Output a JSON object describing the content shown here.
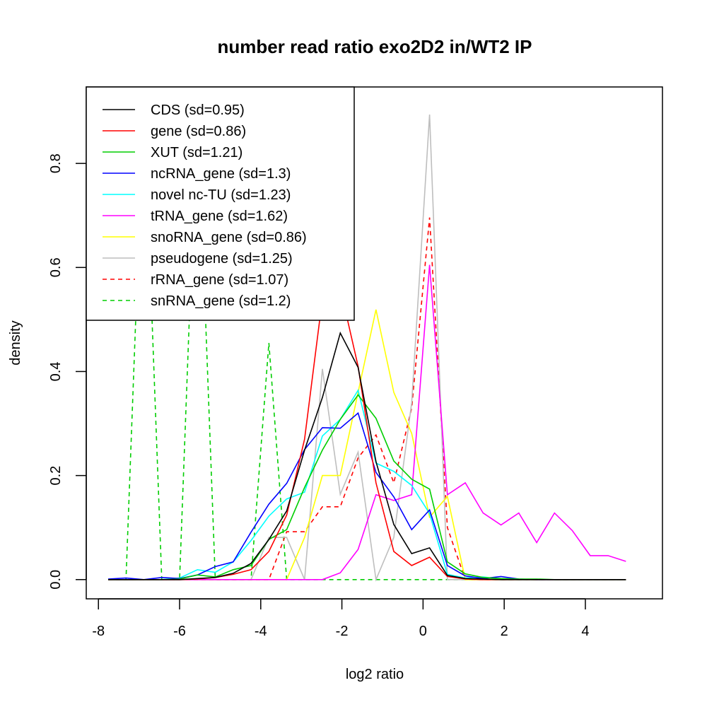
{
  "chart_data": {
    "type": "line",
    "title": "number read ratio exo2D2 in/WT2 IP",
    "xlabel": "log2 ratio",
    "ylabel": "density",
    "xlim": [
      -8.3,
      5.9
    ],
    "ylim": [
      -0.037,
      0.947
    ],
    "xticks": [
      -8,
      -6,
      -4,
      -2,
      0,
      2,
      4
    ],
    "xtick_labels": [
      "-8",
      "-6",
      "-4",
      "-2",
      "0",
      "2",
      "4"
    ],
    "yticks": [
      0.0,
      0.2,
      0.4,
      0.6,
      0.8
    ],
    "ytick_labels": [
      "0.0",
      "0.2",
      "0.4",
      "0.6",
      "0.8"
    ],
    "grid": false,
    "legend_position": "top-left",
    "x": [
      -7.76,
      -7.32,
      -6.88,
      -6.44,
      -6.0,
      -5.56,
      -5.12,
      -4.68,
      -4.24,
      -3.8,
      -3.36,
      -2.92,
      -2.48,
      -2.04,
      -1.6,
      -1.16,
      -0.72,
      -0.28,
      0.16,
      0.6,
      1.04,
      1.48,
      1.92,
      2.36,
      2.8,
      3.24,
      3.68,
      4.12,
      4.56,
      5.0
    ],
    "series": [
      {
        "name": "CDS",
        "legend": "CDS (sd=0.95)",
        "color": "#000000",
        "dash": false,
        "values": [
          0.0,
          0.0,
          0.0,
          0.0,
          0.0,
          0.002,
          0.004,
          0.012,
          0.031,
          0.077,
          0.132,
          0.249,
          0.35,
          0.474,
          0.408,
          0.227,
          0.106,
          0.05,
          0.061,
          0.008,
          0.002,
          0.001,
          0.0,
          0.0,
          0.0,
          0.0,
          0.0,
          0.0,
          0.0,
          0.0
        ]
      },
      {
        "name": "gene",
        "legend": "gene (sd=0.86)",
        "color": "#ff0000",
        "dash": false,
        "values": [
          0.0,
          0.0,
          0.0,
          0.0,
          0.0,
          0.001,
          0.004,
          0.01,
          0.019,
          0.054,
          0.124,
          0.27,
          0.54,
          0.56,
          0.41,
          0.186,
          0.054,
          0.027,
          0.043,
          0.006,
          0.001,
          0.0,
          0.0,
          0.0,
          0.0,
          0.0,
          0.0,
          0.0,
          0.0,
          0.0
        ]
      },
      {
        "name": "XUT",
        "legend": "XUT (sd=1.21)",
        "color": "#00cd00",
        "dash": false,
        "values": [
          0.0,
          0.0,
          0.0,
          0.0,
          0.001,
          0.009,
          0.005,
          0.019,
          0.027,
          0.077,
          0.096,
          0.177,
          0.249,
          0.308,
          0.355,
          0.31,
          0.228,
          0.193,
          0.174,
          0.034,
          0.011,
          0.004,
          0.002,
          0.001,
          0.001,
          0.0,
          0.0,
          0.0,
          0.0,
          0.0
        ]
      },
      {
        "name": "ncRNA_gene",
        "legend": "ncRNA_gene (sd=1.3)",
        "color": "#0000ff",
        "dash": false,
        "values": [
          0.001,
          0.003,
          0.0,
          0.004,
          0.002,
          0.009,
          0.025,
          0.034,
          0.091,
          0.145,
          0.185,
          0.25,
          0.292,
          0.291,
          0.32,
          0.206,
          0.159,
          0.096,
          0.134,
          0.027,
          0.007,
          0.002,
          0.006,
          0.001,
          0.0,
          0.0,
          0.0,
          0.0,
          0.0,
          0.0
        ]
      },
      {
        "name": "novel nc-TU",
        "legend": "novel nc-TU (sd=1.23)",
        "color": "#00ffff",
        "dash": false,
        "values": [
          0.0,
          0.0,
          0.0,
          0.0,
          0.003,
          0.019,
          0.014,
          0.034,
          0.075,
          0.122,
          0.155,
          0.168,
          0.276,
          0.308,
          0.364,
          0.224,
          0.208,
          0.181,
          0.127,
          0.01,
          0.003,
          0.005,
          0.001,
          0.0,
          0.0,
          0.0,
          0.0,
          0.0,
          0.0,
          0.0
        ]
      },
      {
        "name": "tRNA_gene",
        "legend": "tRNA_gene (sd=1.62)",
        "color": "#ff00ff",
        "dash": false,
        "values": [
          0.0,
          0.0,
          0.0,
          0.0,
          0.0,
          0.0,
          0.0,
          0.0,
          0.0,
          0.0,
          0.0,
          0.0,
          0.0,
          0.013,
          0.058,
          0.163,
          0.152,
          0.163,
          0.605,
          0.163,
          0.186,
          0.128,
          0.105,
          0.128,
          0.071,
          0.128,
          0.094,
          0.046,
          0.046,
          0.035
        ]
      },
      {
        "name": "snoRNA_gene",
        "legend": "snoRNA_gene (sd=0.86)",
        "color": "#ffff00",
        "dash": false,
        "values": [
          0.0,
          0.0,
          0.0,
          0.0,
          0.0,
          0.0,
          0.0,
          0.0,
          0.0,
          0.0,
          0.0,
          0.081,
          0.2,
          0.2,
          0.36,
          0.519,
          0.36,
          0.281,
          0.12,
          0.16,
          0.0,
          0.0,
          0.0,
          0.0,
          0.0,
          0.0,
          0.0,
          0.0,
          0.0,
          0.0
        ]
      },
      {
        "name": "pseudogene",
        "legend": "pseudogene (sd=1.25)",
        "color": "#bebebe",
        "dash": false,
        "values": [
          0.0,
          0.0,
          0.0,
          0.0,
          0.0,
          0.0,
          0.0,
          0.0,
          0.0,
          0.081,
          0.081,
          0.0,
          0.405,
          0.164,
          0.245,
          0.0,
          0.081,
          0.34,
          0.894,
          0.0,
          0.0,
          0.0,
          0.0,
          0.0,
          0.0,
          0.0,
          0.0,
          0.0,
          0.0,
          0.0
        ]
      },
      {
        "name": "rRNA_gene",
        "legend": "rRNA_gene (sd=1.07)",
        "color": "#ff0000",
        "dash": true,
        "values": [
          0.0,
          0.0,
          0.0,
          0.0,
          0.0,
          0.0,
          0.0,
          0.0,
          0.0,
          0.0,
          0.092,
          0.092,
          0.14,
          0.14,
          0.234,
          0.278,
          0.186,
          0.33,
          0.696,
          0.1,
          0.0,
          0.0,
          0.0,
          0.0,
          0.0,
          0.0,
          0.0,
          0.0,
          0.0,
          0.0
        ]
      },
      {
        "name": "snRNA_gene",
        "legend": "snRNA_gene (sd=1.2)",
        "color": "#00cd00",
        "dash": true,
        "values": [
          0.0,
          0.0,
          0.92,
          0.0,
          0.0,
          0.92,
          0.0,
          0.0,
          0.0,
          0.455,
          0.0,
          0.0,
          0.0,
          0.0,
          0.0,
          0.0,
          0.0,
          0.0,
          0.0,
          0.0,
          0.0,
          0.0,
          0.0,
          0.0,
          0.0,
          0.0,
          0.0,
          0.0,
          0.0,
          0.0
        ]
      }
    ]
  }
}
